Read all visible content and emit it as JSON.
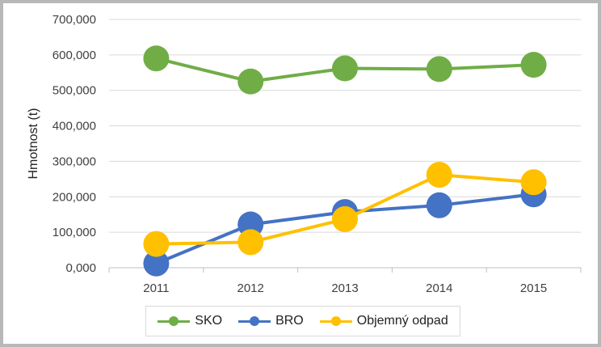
{
  "chart_data": {
    "type": "line",
    "categories": [
      "2011",
      "2012",
      "2013",
      "2014",
      "2015"
    ],
    "series": [
      {
        "name": "SKO",
        "values": [
          590,
          525,
          562,
          560,
          572
        ],
        "color": "#70ad47"
      },
      {
        "name": "BRO",
        "values": [
          12,
          122,
          157,
          176,
          207
        ],
        "color": "#4472c4"
      },
      {
        "name": "Objemný odpad",
        "values": [
          67,
          72,
          137,
          262,
          241
        ],
        "color": "#ffc000"
      }
    ],
    "ylabel": "Hmotnost (t)",
    "xlabel": "",
    "ylim": [
      0,
      700
    ],
    "yticks": [
      0,
      100,
      200,
      300,
      400,
      500,
      600,
      700
    ],
    "ytick_labels": [
      "0,000",
      "100,000",
      "200,000",
      "300,000",
      "400,000",
      "500,000",
      "600,000",
      "700,000"
    ],
    "grid": true,
    "legend_position": "bottom"
  }
}
